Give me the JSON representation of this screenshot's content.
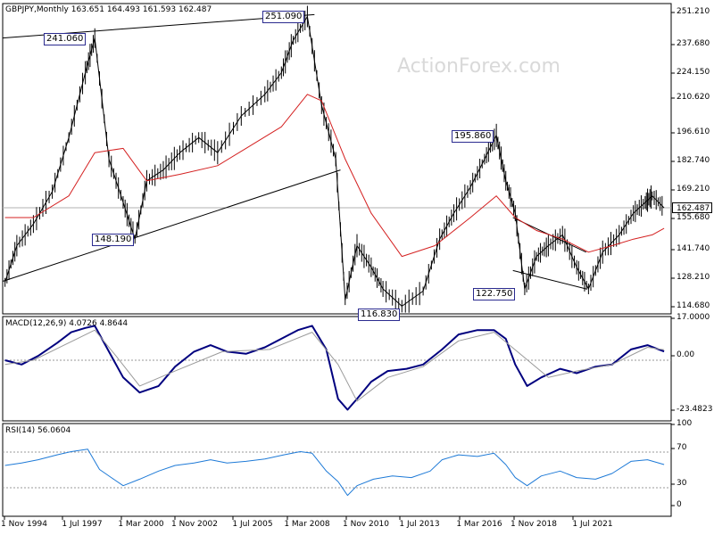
{
  "chart_data": [
    {
      "type": "line",
      "title": "GBPJPY,Monthly",
      "ohlc_label": "163.651 164.493 161.593 162.487",
      "watermark": "ActionForex.com",
      "last_price": "162.487",
      "yticks": [
        "251.210",
        "237.680",
        "224.150",
        "210.620",
        "196.610",
        "182.740",
        "169.210",
        "155.680",
        "141.740",
        "128.210",
        "114.680"
      ],
      "ylim": [
        114.68,
        251.21
      ],
      "xticks": [
        "1 Nov 1994",
        "1 Jul 1997",
        "1 Mar 2000",
        "1 Nov 2002",
        "1 Jul 2005",
        "1 Mar 2008",
        "1 Nov 2010",
        "1 Jul 2013",
        "1 Mar 2016",
        "1 Nov 2018",
        "1 Jul 2021"
      ],
      "callouts": [
        {
          "label": "241.060",
          "x": 1998.6,
          "y": 241.06
        },
        {
          "label": "251.090",
          "x": 2007.6,
          "y": 251.09
        },
        {
          "label": "148.190",
          "x": 2000.3,
          "y": 148.19
        },
        {
          "label": "116.830",
          "x": 2011.6,
          "y": 116.83
        },
        {
          "label": "195.860",
          "x": 2015.6,
          "y": 195.86
        },
        {
          "label": "122.750",
          "x": 2016.5,
          "y": 122.75
        }
      ],
      "trendlines": [
        {
          "from": [
            1994.7,
            241.06
          ],
          "to": [
            2007.9,
            251.9
          ],
          "note": "upper"
        },
        {
          "from": [
            1994.7,
            128.5
          ],
          "to": [
            2009.0,
            180.0
          ],
          "note": "lower"
        },
        {
          "from": [
            2016.3,
            158.0
          ],
          "to": [
            2019.4,
            142.0
          ]
        },
        {
          "from": [
            2016.3,
            133.5
          ],
          "to": [
            2019.4,
            125.0
          ]
        }
      ],
      "series": [
        {
          "type": "price",
          "color": "#000000",
          "x": [
            1994.8,
            1995.3,
            1996.0,
            1996.8,
            1997.5,
            1998.2,
            1998.6,
            1999.2,
            1999.8,
            2000.3,
            2000.8,
            2001.5,
            2002.2,
            2003.0,
            2003.8,
            2004.8,
            2005.8,
            2006.5,
            2007.0,
            2007.6,
            2008.2,
            2008.8,
            2009.2,
            2009.7,
            2010.3,
            2010.8,
            2011.6,
            2012.5,
            2013.2,
            2013.8,
            2014.5,
            2015.1,
            2015.6,
            2016.0,
            2016.4,
            2016.8,
            2017.3,
            2017.8,
            2018.4,
            2019.0,
            2019.5,
            2020.1,
            2020.8,
            2021.4,
            2021.9,
            2022.2,
            2022.7
          ],
          "y": [
            128,
            145,
            155,
            170,
            195,
            225,
            241,
            185,
            165,
            148,
            175,
            180,
            188,
            195,
            188,
            205,
            215,
            225,
            240,
            251,
            210,
            185,
            120,
            145,
            135,
            125,
            117,
            124,
            148,
            160,
            172,
            185,
            196,
            175,
            160,
            125,
            140,
            145,
            150,
            135,
            125,
            142,
            150,
            160,
            165,
            168,
            162.5
          ]
        },
        {
          "type": "ma",
          "color": "#d42020",
          "x": [
            1994.8,
            1996.0,
            1997.5,
            1998.6,
            1999.8,
            2000.8,
            2002.2,
            2003.8,
            2005.0,
            2006.5,
            2007.6,
            2008.2,
            2009.2,
            2010.3,
            2011.6,
            2013.0,
            2014.5,
            2015.6,
            2016.4,
            2017.3,
            2018.4,
            2019.5,
            2020.5,
            2021.4,
            2022.2,
            2022.7
          ],
          "y": [
            158,
            158,
            168,
            188,
            190,
            175,
            178,
            182,
            190,
            200,
            215,
            212,
            185,
            160,
            140,
            145,
            158,
            168,
            158,
            152,
            148,
            142,
            145,
            148,
            150,
            153
          ]
        }
      ]
    },
    {
      "type": "line",
      "title": "MACD(12,26,9) 4.0726 4.8644",
      "yticks": [
        "17.0000",
        "0.00",
        "-23.4823"
      ],
      "ylim": [
        -23.4823,
        17.0
      ],
      "series": [
        {
          "type": "macd",
          "color": "#00007f",
          "x": [
            1994.8,
            1995.5,
            1996.2,
            1997.0,
            1997.6,
            1998.2,
            1998.6,
            1999.2,
            1999.8,
            2000.5,
            2001.3,
            2002.0,
            2002.8,
            2003.5,
            2004.2,
            2005.0,
            2005.8,
            2006.5,
            2007.2,
            2007.8,
            2008.4,
            2008.9,
            2009.3,
            2009.7,
            2010.3,
            2011.0,
            2011.8,
            2012.5,
            2013.3,
            2014.0,
            2014.8,
            2015.5,
            2016.0,
            2016.4,
            2016.9,
            2017.5,
            2018.3,
            2019.0,
            2019.8,
            2020.5,
            2021.3,
            2022.0,
            2022.7
          ],
          "y": [
            0,
            -2,
            2,
            8,
            13,
            15,
            16,
            4,
            -8,
            -15,
            -12,
            -3,
            4,
            7,
            4,
            3,
            6,
            10,
            14,
            16,
            5,
            -18,
            -23,
            -18,
            -10,
            -5,
            -4,
            -2,
            5,
            12,
            14,
            14,
            10,
            -2,
            -12,
            -8,
            -4,
            -6,
            -3,
            -2,
            5,
            7,
            4.07
          ]
        },
        {
          "type": "signal",
          "color": "#9a9a9a",
          "x": [
            1994.8,
            1996.0,
            1997.3,
            1998.6,
            1999.5,
            2000.5,
            2002.0,
            2004.0,
            2006.0,
            2007.8,
            2008.9,
            2009.7,
            2011.0,
            2012.5,
            2014.0,
            2015.5,
            2016.6,
            2017.8,
            2019.0,
            2020.5,
            2022.0,
            2022.7
          ],
          "y": [
            -2,
            0,
            7,
            14,
            2,
            -12,
            -5,
            4,
            5,
            13,
            -2,
            -19,
            -8,
            -3,
            9,
            13,
            3,
            -8,
            -5,
            -2,
            6,
            4.86
          ]
        }
      ]
    },
    {
      "type": "line",
      "title": "RSI(14) 56.0604",
      "yticks": [
        "100",
        "70",
        "30",
        "0"
      ],
      "ylim": [
        0,
        100
      ],
      "series": [
        {
          "type": "rsi",
          "color": "#1e7ad7",
          "x": [
            1994.8,
            1995.5,
            1996.2,
            1997.0,
            1997.6,
            1998.3,
            1998.8,
            1999.3,
            1999.8,
            2000.5,
            2001.3,
            2002.0,
            2002.8,
            2003.5,
            2004.2,
            2005.0,
            2005.8,
            2006.6,
            2007.3,
            2007.8,
            2008.4,
            2008.9,
            2009.3,
            2009.7,
            2010.4,
            2011.2,
            2012.0,
            2012.8,
            2013.3,
            2014.0,
            2014.8,
            2015.5,
            2016.0,
            2016.4,
            2016.9,
            2017.5,
            2018.3,
            2019.0,
            2019.8,
            2020.5,
            2021.3,
            2022.0,
            2022.7
          ],
          "y": [
            55,
            58,
            62,
            68,
            72,
            75,
            50,
            40,
            30,
            38,
            48,
            55,
            58,
            62,
            58,
            60,
            63,
            68,
            72,
            70,
            48,
            35,
            18,
            30,
            38,
            42,
            40,
            48,
            62,
            68,
            66,
            70,
            56,
            40,
            30,
            42,
            48,
            40,
            38,
            45,
            60,
            62,
            56.06
          ]
        }
      ]
    }
  ]
}
